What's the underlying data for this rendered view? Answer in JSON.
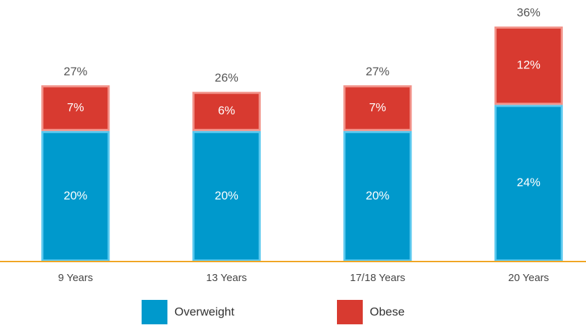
{
  "chart_data": {
    "type": "stacked_bar",
    "categories": [
      "9 Years",
      "13 Years",
      "17/18 Years",
      "20 Years"
    ],
    "series": [
      {
        "name": "Overweight",
        "color": "#0099cc",
        "border": "#5cc9ef",
        "values": [
          20,
          20,
          20,
          24
        ],
        "value_labels": [
          "20%",
          "20%",
          "20%",
          "24%"
        ]
      },
      {
        "name": "Obese",
        "color": "#d83a30",
        "border": "#f2938a",
        "values": [
          7,
          6,
          7,
          12
        ],
        "value_labels": [
          "7%",
          "6%",
          "7%",
          "12%"
        ]
      }
    ],
    "totals": [
      27,
      26,
      27,
      36
    ],
    "total_labels": [
      "27%",
      "26%",
      "27%",
      "36%"
    ],
    "legend": "bottom"
  }
}
